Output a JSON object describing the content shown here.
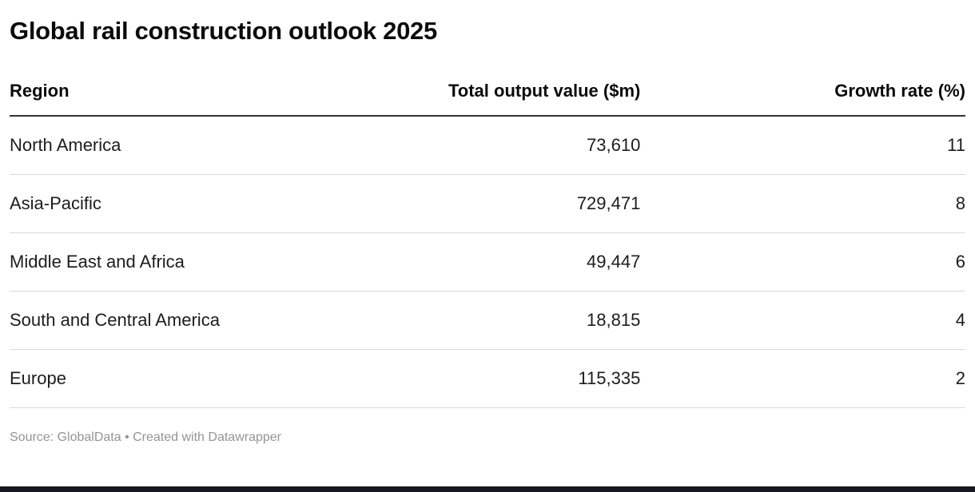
{
  "title": "Global rail construction outlook 2025",
  "table": {
    "columns": [
      "Region",
      "Total output value ($m)",
      "Growth rate (%)"
    ],
    "rows": [
      [
        "North America",
        "73,610",
        "11"
      ],
      [
        "Asia-Pacific",
        "729,471",
        "8"
      ],
      [
        "Middle East and Africa",
        "49,447",
        "6"
      ],
      [
        "South and Central America",
        "18,815",
        "4"
      ],
      [
        "Europe",
        "115,335",
        "2"
      ]
    ]
  },
  "footer": {
    "source": "Source: GlobalData • Created with Datawrapper"
  },
  "colors": {
    "bottom_bar": "#15181e",
    "header_border": "#333333",
    "row_border": "#d9d9d9",
    "source_text": "#949494"
  },
  "chart_data": {
    "type": "table",
    "title": "Global rail construction outlook 2025",
    "columns": [
      "Region",
      "Total output value ($m)",
      "Growth rate (%)"
    ],
    "rows": [
      {
        "region": "North America",
        "total_output_value_m": 73610,
        "growth_rate_pct": 11
      },
      {
        "region": "Asia-Pacific",
        "total_output_value_m": 729471,
        "growth_rate_pct": 8
      },
      {
        "region": "Middle East and Africa",
        "total_output_value_m": 49447,
        "growth_rate_pct": 6
      },
      {
        "region": "South and Central America",
        "total_output_value_m": 18815,
        "growth_rate_pct": 4
      },
      {
        "region": "Europe",
        "total_output_value_m": 115335,
        "growth_rate_pct": 2
      }
    ],
    "source": "GlobalData",
    "tool": "Datawrapper"
  }
}
